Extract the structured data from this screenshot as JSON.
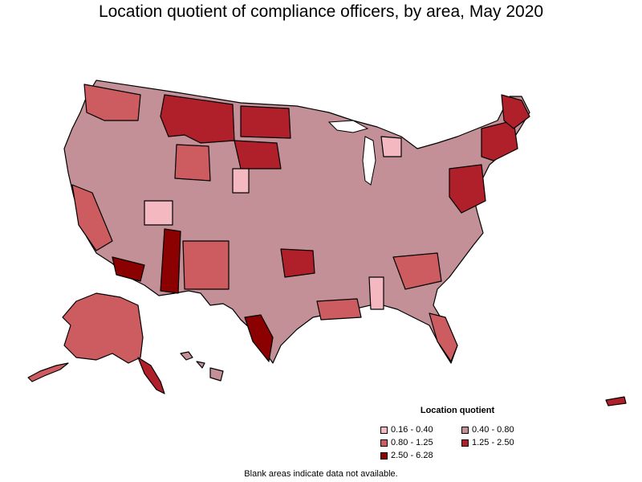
{
  "title": "Location quotient of compliance officers, by area, May 2020",
  "legend": {
    "title": "Location quotient",
    "items": [
      {
        "label": "0.16 - 0.40",
        "color": "#f4b8c0"
      },
      {
        "label": "0.40 - 0.80",
        "color": "#c29096"
      },
      {
        "label": "0.80 - 1.25",
        "color": "#cc5c5f"
      },
      {
        "label": "1.25 - 2.50",
        "color": "#b0202a"
      },
      {
        "label": "2.50 - 6.28",
        "color": "#8b0000"
      }
    ]
  },
  "footnote": "Blank areas indicate data not available.",
  "colors": {
    "base": "#c29096",
    "light": "#f4b8c0",
    "medium": "#cc5c5f",
    "high": "#b0202a",
    "highest": "#8b0000",
    "blank": "#ffffff"
  }
}
